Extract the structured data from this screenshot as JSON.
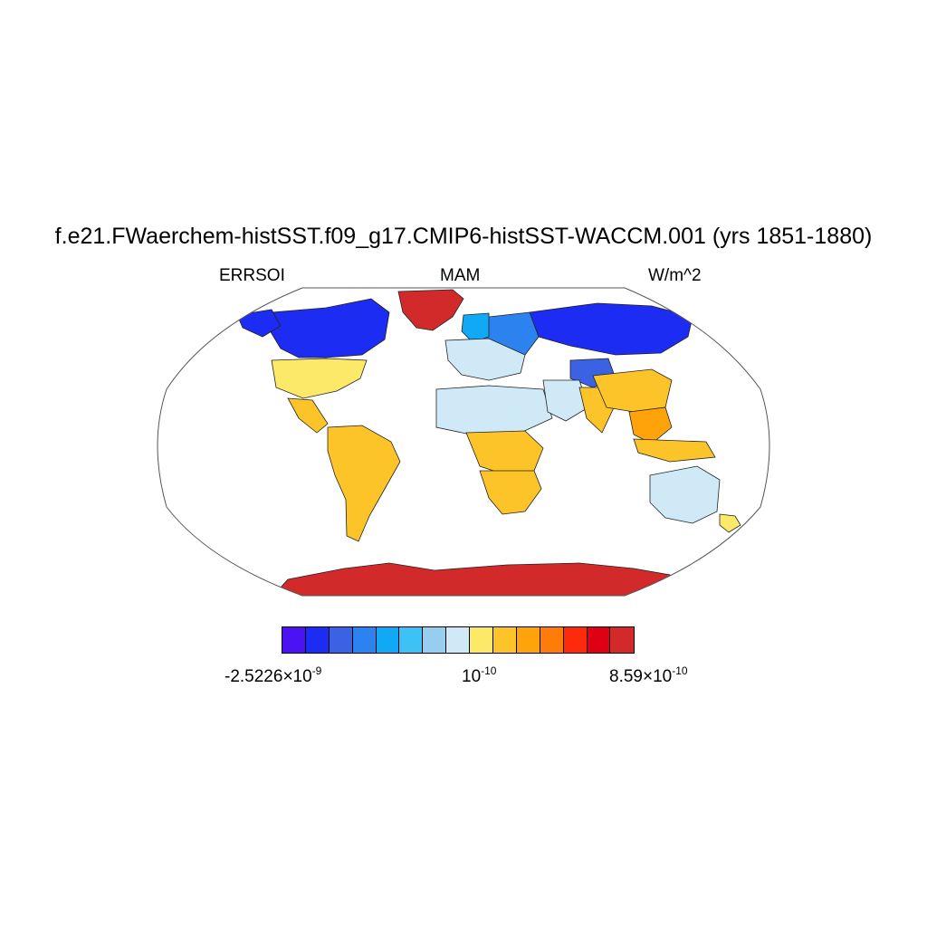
{
  "title": "f.e21.FWaerchem-histSST.f09_g17.CMIP6-histSST-WACCM.001 (yrs 1851-1880)",
  "left_label": "ERRSOI",
  "center_label": "MAM",
  "right_label": "W/m^2",
  "projection": "robinson",
  "colorbar": {
    "colors": [
      "#4b12f4",
      "#1d2cf2",
      "#3c62e4",
      "#2c83f0",
      "#11a9f5",
      "#3ec2f5",
      "#97cdee",
      "#cfe9f6",
      "#fde968",
      "#fdc429",
      "#fea30a",
      "#fe7c09",
      "#fd2b0c",
      "#e00014",
      "#d22a2a"
    ],
    "tick_labels": [
      {
        "mantissa": "-2.5226",
        "exponent": "-9"
      },
      {
        "mantissa": "",
        "exponent": "-10"
      },
      {
        "mantissa": "8.59",
        "exponent": "-10"
      }
    ]
  },
  "regions": [
    {
      "name": "greenland",
      "level": 14
    },
    {
      "name": "antarctica",
      "level": 14
    },
    {
      "name": "canada-arctic",
      "level": 1
    },
    {
      "name": "alaska",
      "level": 1
    },
    {
      "name": "siberia",
      "level": 1
    },
    {
      "name": "north-russia",
      "level": 3
    },
    {
      "name": "scandinavia",
      "level": 4
    },
    {
      "name": "tibet",
      "level": 2
    },
    {
      "name": "usa",
      "level": 8
    },
    {
      "name": "mexico",
      "level": 9
    },
    {
      "name": "south-america",
      "level": 9
    },
    {
      "name": "europe",
      "level": 7
    },
    {
      "name": "sahara",
      "level": 7
    },
    {
      "name": "middle-east",
      "level": 7
    },
    {
      "name": "central-africa",
      "level": 9
    },
    {
      "name": "southern-africa",
      "level": 9
    },
    {
      "name": "india",
      "level": 9
    },
    {
      "name": "china",
      "level": 9
    },
    {
      "name": "se-asia",
      "level": 10
    },
    {
      "name": "indonesia",
      "level": 9
    },
    {
      "name": "australia",
      "level": 7
    },
    {
      "name": "new-zealand",
      "level": 8
    }
  ]
}
